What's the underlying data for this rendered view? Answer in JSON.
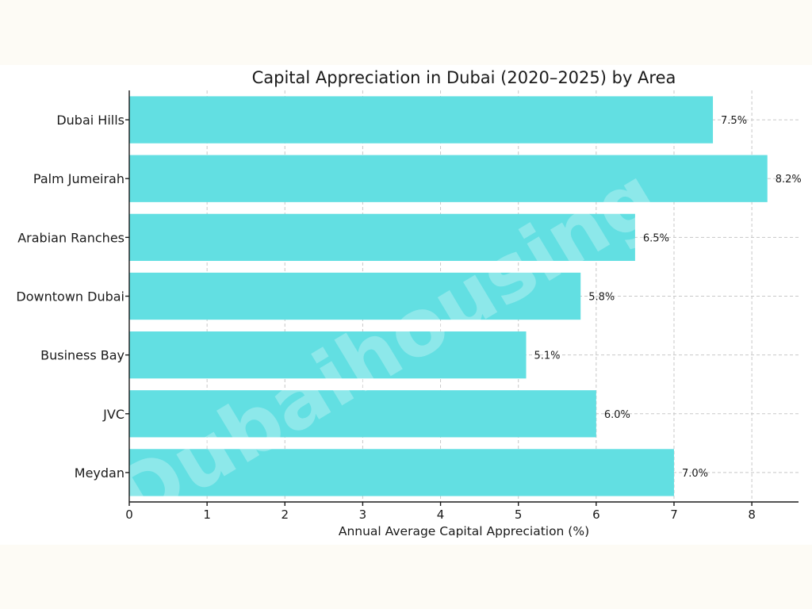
{
  "chart_data": {
    "type": "bar",
    "orientation": "horizontal",
    "title": "Capital Appreciation in Dubai (2020–2025) by Area",
    "xlabel": "Annual Average Capital Appreciation (%)",
    "ylabel": "",
    "categories": [
      "Dubai Hills",
      "Palm Jumeirah",
      "Arabian Ranches",
      "Downtown Dubai",
      "Business Bay",
      "JVC",
      "Meydan"
    ],
    "values": [
      7.5,
      8.2,
      6.5,
      5.8,
      5.1,
      6.0,
      7.0
    ],
    "value_labels": [
      "7.5%",
      "8.2%",
      "6.5%",
      "5.8%",
      "5.1%",
      "6.0%",
      "7.0%"
    ],
    "xticks": [
      "0",
      "1",
      "2",
      "3",
      "4",
      "5",
      "6",
      "7",
      "8"
    ],
    "xlim": [
      0,
      8.6
    ],
    "grid": true,
    "bar_color": "#62dfe2"
  },
  "watermark": "Dubaihousing"
}
